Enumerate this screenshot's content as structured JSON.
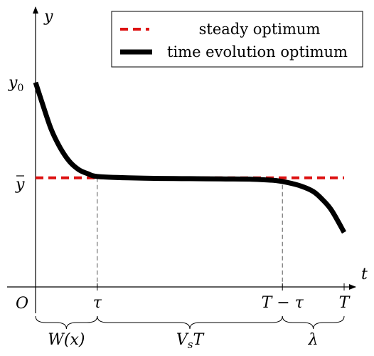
{
  "axes": {
    "x_label": "t",
    "y_label": "y",
    "origin": "O"
  },
  "y_ticks": [
    {
      "id": "y0",
      "label": "y0",
      "value": 0.75
    },
    {
      "id": "ybar",
      "label": "ȳ",
      "value": 0.4
    }
  ],
  "x_ticks": [
    {
      "id": "tau",
      "label": "τ",
      "value": 0.2
    },
    {
      "id": "T-tau",
      "label": "T − τ",
      "value": 0.8
    },
    {
      "id": "T",
      "label": "T",
      "value": 1.0
    }
  ],
  "braces": [
    {
      "id": "W",
      "label": "W(x)",
      "from": 0.0,
      "to": 0.2
    },
    {
      "id": "VsT",
      "label": "VsT",
      "from": 0.2,
      "to": 0.8
    },
    {
      "id": "lambda",
      "label": "λ",
      "from": 0.8,
      "to": 1.0
    }
  ],
  "legend": {
    "steady": "steady optimum",
    "time": "time evolution optimum"
  },
  "colors": {
    "steady": "#dd1111",
    "time": "#000000",
    "guide": "#555555"
  },
  "chart_data": {
    "type": "line",
    "series": [
      {
        "name": "steady optimum",
        "x": [
          0.0,
          1.0
        ],
        "y": [
          0.4,
          0.4
        ]
      },
      {
        "name": "time evolution optimum",
        "x": [
          0.0,
          0.02,
          0.05,
          0.08,
          0.11,
          0.14,
          0.17,
          0.2,
          0.3,
          0.4,
          0.5,
          0.6,
          0.7,
          0.78,
          0.82,
          0.86,
          0.9,
          0.93,
          0.96,
          1.0
        ],
        "y": [
          0.75,
          0.68,
          0.58,
          0.51,
          0.46,
          0.43,
          0.415,
          0.405,
          0.4,
          0.398,
          0.397,
          0.396,
          0.395,
          0.39,
          0.382,
          0.37,
          0.35,
          0.32,
          0.28,
          0.2
        ]
      }
    ]
  }
}
